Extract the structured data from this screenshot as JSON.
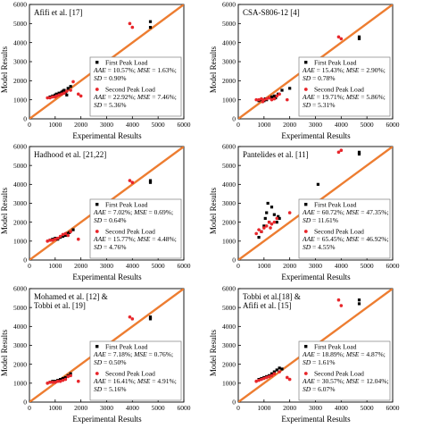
{
  "figure": {
    "ylabel": "Model Results",
    "xlabel": "Experimental Results"
  },
  "chart_data": [
    {
      "type": "scatter",
      "panel_title": "Afifi et al. [17]",
      "xlim": [
        0,
        6000
      ],
      "ylim": [
        0,
        6000
      ],
      "xticks": [
        "0",
        "1000",
        "2000",
        "3000",
        "4000",
        "5000",
        "6000"
      ],
      "yticks": [
        "0",
        "1000",
        "2000",
        "3000",
        "4000",
        "5000",
        "6000"
      ],
      "fit_line": {
        "from": [
          0,
          0
        ],
        "to": [
          6000,
          6000
        ],
        "color": "#ED7D31"
      },
      "legend_position": "bottom-right",
      "series": [
        {
          "name": "First Peak Load",
          "marker": "square",
          "color": "#000000",
          "points": [
            [
              800,
              1150
            ],
            [
              900,
              1200
            ],
            [
              1000,
              1250
            ],
            [
              1050,
              1300
            ],
            [
              1150,
              1350
            ],
            [
              1200,
              1300
            ],
            [
              1250,
              1400
            ],
            [
              1300,
              1450
            ],
            [
              1350,
              1500
            ],
            [
              1400,
              1400
            ],
            [
              1450,
              1250
            ],
            [
              1500,
              1600
            ],
            [
              1600,
              1700
            ],
            [
              3100,
              2800
            ],
            [
              4700,
              5100
            ],
            [
              4700,
              4800
            ]
          ]
        },
        {
          "name": "Second Peak Load",
          "marker": "dot",
          "color": "#E8262B",
          "points": [
            [
              700,
              1100
            ],
            [
              800,
              1100
            ],
            [
              900,
              1150
            ],
            [
              1000,
              1150
            ],
            [
              1050,
              1200
            ],
            [
              1150,
              1250
            ],
            [
              1250,
              1300
            ],
            [
              1350,
              1350
            ],
            [
              1450,
              1450
            ],
            [
              1600,
              1500
            ],
            [
              1700,
              1950
            ],
            [
              1900,
              1300
            ],
            [
              2000,
              1200
            ],
            [
              3900,
              5000
            ],
            [
              4000,
              4800
            ]
          ]
        }
      ],
      "stats": [
        {
          "aae": "10.57%",
          "mse": "1.63%",
          "sd": "0.90%"
        },
        {
          "aae": "22.92%",
          "mse": "7.46%",
          "sd": "5.36%"
        }
      ]
    },
    {
      "type": "scatter",
      "panel_title": "CSA-S806-12 [4]",
      "xlim": [
        0,
        6000
      ],
      "ylim": [
        0,
        6000
      ],
      "xticks": [
        "0",
        "1000",
        "2000",
        "3000",
        "4000",
        "5000",
        "6000"
      ],
      "yticks": [
        "0",
        "1000",
        "2000",
        "3000",
        "4000",
        "5000",
        "6000"
      ],
      "fit_line": {
        "from": [
          0,
          0
        ],
        "to": [
          6000,
          6000
        ],
        "color": "#ED7D31"
      },
      "legend_position": "bottom-right",
      "series": [
        {
          "name": "First Peak Load",
          "marker": "square",
          "color": "#000000",
          "points": [
            [
              800,
              950
            ],
            [
              900,
              1000
            ],
            [
              1000,
              950
            ],
            [
              1050,
              1050
            ],
            [
              1100,
              1000
            ],
            [
              1200,
              1100
            ],
            [
              1300,
              1150
            ],
            [
              1400,
              1200
            ],
            [
              1450,
              1100
            ],
            [
              1550,
              1300
            ],
            [
              1700,
              1500
            ],
            [
              2000,
              1600
            ],
            [
              3100,
              2100
            ],
            [
              4700,
              4300
            ],
            [
              4700,
              4200
            ]
          ]
        },
        {
          "name": "Second Peak Load",
          "marker": "dot",
          "color": "#E8262B",
          "points": [
            [
              700,
              1000
            ],
            [
              800,
              1000
            ],
            [
              900,
              1050
            ],
            [
              950,
              900
            ],
            [
              1000,
              1000
            ],
            [
              1100,
              1050
            ],
            [
              1200,
              1100
            ],
            [
              1300,
              1000
            ],
            [
              1400,
              1050
            ],
            [
              1500,
              1200
            ],
            [
              1600,
              1300
            ],
            [
              1900,
              1000
            ],
            [
              3900,
              4300
            ],
            [
              4000,
              4200
            ]
          ]
        }
      ],
      "stats": [
        {
          "aae": "15.43%",
          "mse": "2.90%",
          "sd": "0.78%"
        },
        {
          "aae": "19.71%",
          "mse": "5.86%",
          "sd": "5.31%"
        }
      ]
    },
    {
      "type": "scatter",
      "panel_title": "Hadhood et al. [21,22]",
      "xlim": [
        0,
        6000
      ],
      "ylim": [
        0,
        6000
      ],
      "xticks": [
        "0",
        "1000",
        "2000",
        "3000",
        "4000",
        "5000",
        "6000"
      ],
      "yticks": [
        "0",
        "1000",
        "2000",
        "3000",
        "4000",
        "5000",
        "6000"
      ],
      "fit_line": {
        "from": [
          0,
          0
        ],
        "to": [
          6000,
          6000
        ],
        "color": "#ED7D31"
      },
      "legend_position": "bottom-right",
      "series": [
        {
          "name": "First Peak Load",
          "marker": "square",
          "color": "#000000",
          "points": [
            [
              800,
              1050
            ],
            [
              900,
              1100
            ],
            [
              1000,
              1150
            ],
            [
              1100,
              1100
            ],
            [
              1200,
              1200
            ],
            [
              1300,
              1250
            ],
            [
              1400,
              1300
            ],
            [
              1450,
              1400
            ],
            [
              1550,
              1450
            ],
            [
              1700,
              1600
            ],
            [
              3100,
              2800
            ],
            [
              4700,
              4100
            ],
            [
              4700,
              4200
            ]
          ]
        },
        {
          "name": "Second Peak Load",
          "marker": "dot",
          "color": "#E8262B",
          "points": [
            [
              700,
              1000
            ],
            [
              800,
              1050
            ],
            [
              900,
              1050
            ],
            [
              1000,
              1100
            ],
            [
              1100,
              1150
            ],
            [
              1200,
              1250
            ],
            [
              1300,
              1350
            ],
            [
              1400,
              1400
            ],
            [
              1500,
              1300
            ],
            [
              1600,
              1500
            ],
            [
              1900,
              1100
            ],
            [
              3900,
              4200
            ],
            [
              4000,
              4100
            ]
          ]
        }
      ],
      "stats": [
        {
          "aae": "7.02%",
          "mse": "0.69%",
          "sd": "0.64%"
        },
        {
          "aae": "15.77%",
          "mse": "4.48%",
          "sd": "4.76%"
        }
      ]
    },
    {
      "type": "scatter",
      "panel_title": "Pantelides et al. [11]",
      "xlim": [
        0,
        6000
      ],
      "ylim": [
        0,
        6000
      ],
      "xticks": [
        "0",
        "1000",
        "2000",
        "3000",
        "4000",
        "5000",
        "6000"
      ],
      "yticks": [
        "0",
        "1000",
        "2000",
        "3000",
        "4000",
        "5000",
        "6000"
      ],
      "fit_line": {
        "from": [
          0,
          0
        ],
        "to": [
          6000,
          6000
        ],
        "color": "#ED7D31"
      },
      "legend_position": "bottom-right",
      "series": [
        {
          "name": "First Peak Load",
          "marker": "square",
          "color": "#000000",
          "points": [
            [
              800,
              1200
            ],
            [
              900,
              1500
            ],
            [
              1000,
              1800
            ],
            [
              1050,
              2200
            ],
            [
              1100,
              2500
            ],
            [
              1150,
              3000
            ],
            [
              1200,
              2000
            ],
            [
              1300,
              2800
            ],
            [
              1400,
              2400
            ],
            [
              1500,
              2000
            ],
            [
              1550,
              2300
            ],
            [
              1600,
              2200
            ],
            [
              3100,
              4000
            ],
            [
              4700,
              5600
            ],
            [
              4700,
              5700
            ]
          ]
        },
        {
          "name": "Second Peak Load",
          "marker": "dot",
          "color": "#E8262B",
          "points": [
            [
              700,
              1400
            ],
            [
              800,
              1600
            ],
            [
              900,
              1500
            ],
            [
              1000,
              1700
            ],
            [
              1100,
              1800
            ],
            [
              1200,
              2000
            ],
            [
              1250,
              1700
            ],
            [
              1300,
              1900
            ],
            [
              1400,
              2000
            ],
            [
              1500,
              2200
            ],
            [
              2000,
              2500
            ],
            [
              3900,
              5700
            ],
            [
              4000,
              5800
            ]
          ]
        }
      ],
      "stats": [
        {
          "aae": "60.72%",
          "mse": "47.35%",
          "sd": "11.61%"
        },
        {
          "aae": "65.45%",
          "mse": "46.92%",
          "sd": "4.55%"
        }
      ]
    },
    {
      "type": "scatter",
      "panel_title": "Mohamed et al. [12] & Tobbi et al. [19]",
      "panel_title_lines": [
        "Mohamed et al. [12] &",
        "Tobbi et al. [19]"
      ],
      "xlim": [
        0,
        6000
      ],
      "ylim": [
        0,
        6000
      ],
      "xticks": [
        "0",
        "1000",
        "2000",
        "3000",
        "4000",
        "5000",
        "6000"
      ],
      "yticks": [
        "0",
        "1000",
        "2000",
        "3000",
        "4000",
        "5000",
        "6000"
      ],
      "fit_line": {
        "from": [
          0,
          0
        ],
        "to": [
          6000,
          6000
        ],
        "color": "#ED7D31"
      },
      "legend_position": "bottom-right",
      "series": [
        {
          "name": "First Peak Load",
          "marker": "square",
          "color": "#000000",
          "points": [
            [
              800,
              1050
            ],
            [
              900,
              1100
            ],
            [
              1000,
              1100
            ],
            [
              1100,
              1150
            ],
            [
              1200,
              1200
            ],
            [
              1300,
              1250
            ],
            [
              1400,
              1300
            ],
            [
              1500,
              1400
            ],
            [
              1600,
              1500
            ],
            [
              3100,
              2600
            ],
            [
              4700,
              4500
            ],
            [
              4700,
              4400
            ]
          ]
        },
        {
          "name": "Second Peak Load",
          "marker": "dot",
          "color": "#E8262B",
          "points": [
            [
              700,
              1000
            ],
            [
              800,
              1050
            ],
            [
              900,
              1050
            ],
            [
              1000,
              1050
            ],
            [
              1100,
              1100
            ],
            [
              1200,
              1100
            ],
            [
              1300,
              1150
            ],
            [
              1400,
              1200
            ],
            [
              1500,
              1350
            ],
            [
              1600,
              1400
            ],
            [
              1900,
              1100
            ],
            [
              3900,
              4500
            ],
            [
              4000,
              4400
            ]
          ]
        }
      ],
      "stats": [
        {
          "aae": "7.18%",
          "mse": "0.76%",
          "sd": "0.50%"
        },
        {
          "aae": "16.41%",
          "mse": "4.91%",
          "sd": "5.16%"
        }
      ]
    },
    {
      "type": "scatter",
      "panel_title": "Tobbi et al.[18] & Afifi et al. [15]",
      "panel_title_lines": [
        "Tobbi et al.[18] &",
        "Afifi et al. [15]"
      ],
      "xlim": [
        0,
        6000
      ],
      "ylim": [
        0,
        6000
      ],
      "xticks": [
        "0",
        "1000",
        "2000",
        "3000",
        "4000",
        "5000",
        "6000"
      ],
      "yticks": [
        "0",
        "1000",
        "2000",
        "3000",
        "4000",
        "5000",
        "6000"
      ],
      "fit_line": {
        "from": [
          0,
          0
        ],
        "to": [
          6000,
          6000
        ],
        "color": "#ED7D31"
      },
      "legend_position": "bottom-right",
      "series": [
        {
          "name": "First Peak Load",
          "marker": "square",
          "color": "#000000",
          "points": [
            [
              800,
              1200
            ],
            [
              900,
              1250
            ],
            [
              1000,
              1300
            ],
            [
              1100,
              1350
            ],
            [
              1200,
              1400
            ],
            [
              1300,
              1500
            ],
            [
              1400,
              1600
            ],
            [
              1500,
              1700
            ],
            [
              1600,
              1800
            ],
            [
              1700,
              1750
            ],
            [
              3100,
              3000
            ],
            [
              4700,
              5400
            ],
            [
              4700,
              5200
            ]
          ]
        },
        {
          "name": "Second Peak Load",
          "marker": "dot",
          "color": "#E8262B",
          "points": [
            [
              700,
              1100
            ],
            [
              800,
              1150
            ],
            [
              900,
              1200
            ],
            [
              1000,
              1250
            ],
            [
              1100,
              1300
            ],
            [
              1200,
              1350
            ],
            [
              1300,
              1400
            ],
            [
              1400,
              1500
            ],
            [
              1600,
              1600
            ],
            [
              1900,
              1300
            ],
            [
              2000,
              1200
            ],
            [
              3900,
              5400
            ],
            [
              4000,
              5100
            ]
          ]
        }
      ],
      "stats": [
        {
          "aae": "18.89%",
          "mse": "4.87%",
          "sd": "1.61%"
        },
        {
          "aae": "30.57%",
          "mse": "12.04%",
          "sd": "6.07%"
        }
      ]
    }
  ]
}
